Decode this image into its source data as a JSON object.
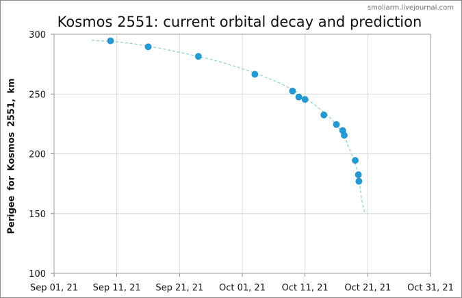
{
  "watermark": "smoliarm.livejournal.com",
  "chart_data": {
    "type": "scatter",
    "title": "Kosmos 2551: current orbital decay and prediction",
    "xlabel": "",
    "ylabel": "Perigee for Kosmos 2551, km",
    "x_ticks": [
      "2021-09-01",
      "2021-09-11",
      "2021-09-21",
      "2021-10-01",
      "2021-10-11",
      "2021-10-21",
      "2021-10-31"
    ],
    "x_tick_labels": [
      "Sep 01, 21",
      "Sep 11, 21",
      "Sep 21, 21",
      "Oct 01, 21",
      "Oct 11, 21",
      "Oct 21, 21",
      "Oct 31, 21"
    ],
    "xlim": [
      "2021-09-01",
      "2021-10-31"
    ],
    "y_ticks": [
      100,
      150,
      200,
      250,
      300
    ],
    "ylim": [
      100,
      300
    ],
    "grid": true,
    "legend": "none",
    "series": [
      {
        "type": "scatter",
        "color": "#1f9bd7",
        "points": [
          {
            "x": "2021-09-10",
            "y": 294.5
          },
          {
            "x": "2021-09-16",
            "y": 289.5
          },
          {
            "x": "2021-09-24",
            "y": 281.5
          },
          {
            "x": "2021-10-03",
            "y": 266.5
          },
          {
            "x": "2021-10-09",
            "y": 252.5
          },
          {
            "x": "2021-10-10",
            "y": 247.5
          },
          {
            "x": "2021-10-11",
            "y": 245.5
          },
          {
            "x": "2021-10-14",
            "y": 232.5
          },
          {
            "x": "2021-10-16",
            "y": 224.5
          },
          {
            "x": "2021-10-17",
            "y": 219.5
          },
          {
            "x": "2021-10-17T06:00",
            "y": 215.5
          },
          {
            "x": "2021-10-19",
            "y": 194.5
          },
          {
            "x": "2021-10-19T12:00",
            "y": 182.5
          },
          {
            "x": "2021-10-19T14:00",
            "y": 177.0
          }
        ]
      },
      {
        "type": "line",
        "style": "dashed",
        "color": "#8fd3c6",
        "points": [
          {
            "x": "2021-09-07",
            "y": 295.0
          },
          {
            "x": "2021-09-13",
            "y": 292.5
          },
          {
            "x": "2021-09-20",
            "y": 286.0
          },
          {
            "x": "2021-09-27",
            "y": 277.5
          },
          {
            "x": "2021-10-03",
            "y": 267.5
          },
          {
            "x": "2021-10-08",
            "y": 256.5
          },
          {
            "x": "2021-10-12",
            "y": 243.0
          },
          {
            "x": "2021-10-15",
            "y": 230.0
          },
          {
            "x": "2021-10-17",
            "y": 217.0
          },
          {
            "x": "2021-10-18",
            "y": 205.0
          },
          {
            "x": "2021-10-19",
            "y": 192.0
          },
          {
            "x": "2021-10-19T16:00",
            "y": 176.0
          },
          {
            "x": "2021-10-20",
            "y": 163.0
          },
          {
            "x": "2021-10-20T12:00",
            "y": 151.0
          }
        ]
      }
    ]
  }
}
